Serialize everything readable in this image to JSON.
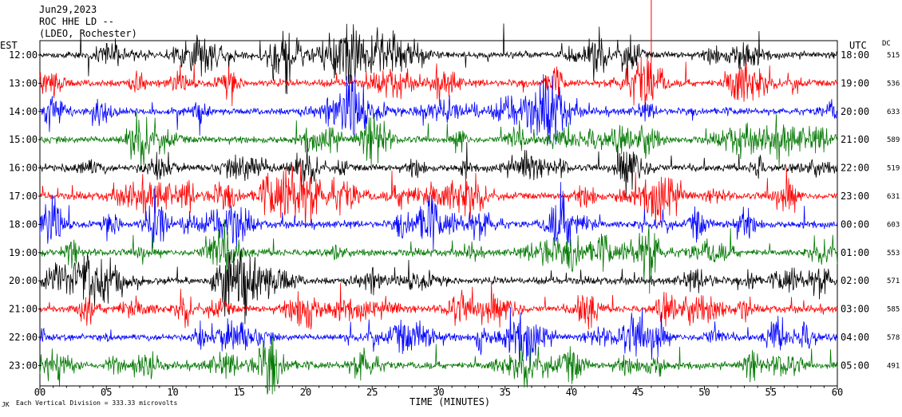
{
  "header": {
    "date": "Jun29,2023",
    "station": "ROC HHE LD --",
    "network": "(LDEO, Rochester)"
  },
  "labels": {
    "left_zone": "EST",
    "right_zone": "UTC",
    "dc_header": "DC",
    "x_axis": "TIME (MINUTES)",
    "footnote_marker": "JK",
    "vertical_division": "Each Vertical Division =  333.33 microvolts"
  },
  "colors": {
    "cycle": [
      "#000000",
      "#ff0000",
      "#0000ff",
      "#007700"
    ],
    "event_line": "#ff0000"
  },
  "chart_data": {
    "type": "line",
    "title": "ROC HHE LD --",
    "xlabel": "TIME (MINUTES)",
    "ylabel": "",
    "xlim": [
      0,
      60
    ],
    "x_ticks": [
      "00",
      "05",
      "10",
      "15",
      "20",
      "25",
      "30",
      "35",
      "40",
      "45",
      "50",
      "55",
      "60"
    ],
    "grid": false,
    "rows": [
      {
        "local": "12:00",
        "utc": "18:00",
        "dc": "515"
      },
      {
        "local": "13:00",
        "utc": "19:00",
        "dc": "536"
      },
      {
        "local": "14:00",
        "utc": "20:00",
        "dc": "633"
      },
      {
        "local": "15:00",
        "utc": "21:00",
        "dc": "589"
      },
      {
        "local": "16:00",
        "utc": "22:00",
        "dc": "519"
      },
      {
        "local": "17:00",
        "utc": "23:00",
        "dc": "631"
      },
      {
        "local": "18:00",
        "utc": "00:00",
        "dc": "603"
      },
      {
        "local": "19:00",
        "utc": "01:00",
        "dc": "553"
      },
      {
        "local": "20:00",
        "utc": "02:00",
        "dc": "571"
      },
      {
        "local": "21:00",
        "utc": "03:00",
        "dc": "585"
      },
      {
        "local": "22:00",
        "utc": "04:00",
        "dc": "578"
      },
      {
        "local": "23:00",
        "utc": "05:00",
        "dc": "491"
      }
    ],
    "event_marker_minute": 46.0
  }
}
